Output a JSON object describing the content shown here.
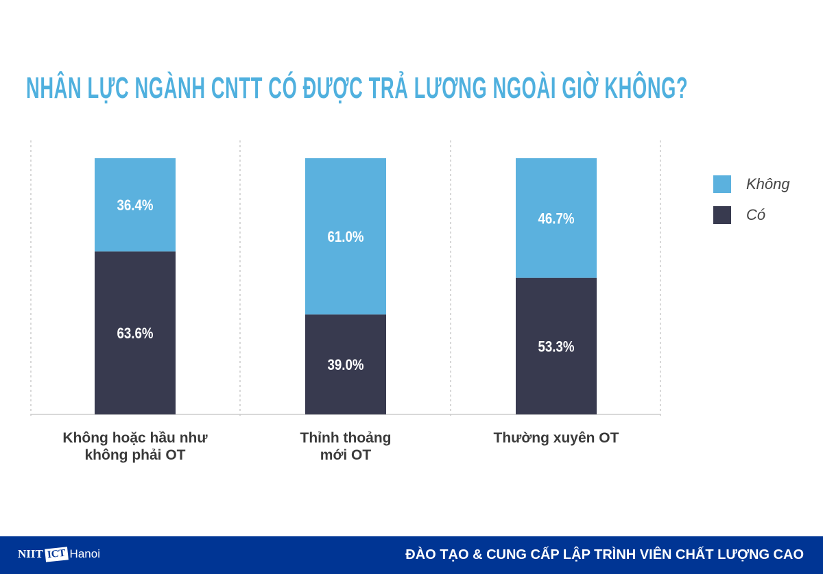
{
  "chart_data": {
    "type": "bar",
    "stacked": true,
    "title": "NHÂN LỰC NGÀNH CNTT CÓ ĐƯỢC TRẢ LƯƠNG NGOÀI GIỜ KHÔNG?",
    "categories": [
      "Không hoặc hầu như\nkhông phải OT",
      "Thỉnh thoảng\nmới OT",
      "Thường xuyên OT"
    ],
    "series": [
      {
        "name": "Có",
        "values": [
          63.6,
          39.0,
          53.3
        ],
        "labels": [
          "63.6%",
          "39.0%",
          "53.3%"
        ],
        "color": "#383a4f"
      },
      {
        "name": "Không",
        "values": [
          36.4,
          61.0,
          46.7
        ],
        "labels": [
          "36.4%",
          "61.0%",
          "46.7%"
        ],
        "color": "#5bb1de"
      }
    ],
    "ylim": [
      0,
      100
    ],
    "legend": "right",
    "grid": "vertical dashed separators"
  },
  "legend": [
    {
      "label": "Không",
      "color": "#5bb1de"
    },
    {
      "label": "Có",
      "color": "#383a4f"
    }
  ],
  "footer": {
    "logo_text": "NIIT ICT Hanoi",
    "slogan": "ĐÀO TẠO & CUNG CẤP LẬP TRÌNH VIÊN CHẤT LƯỢNG CAO",
    "background": "#003594"
  }
}
